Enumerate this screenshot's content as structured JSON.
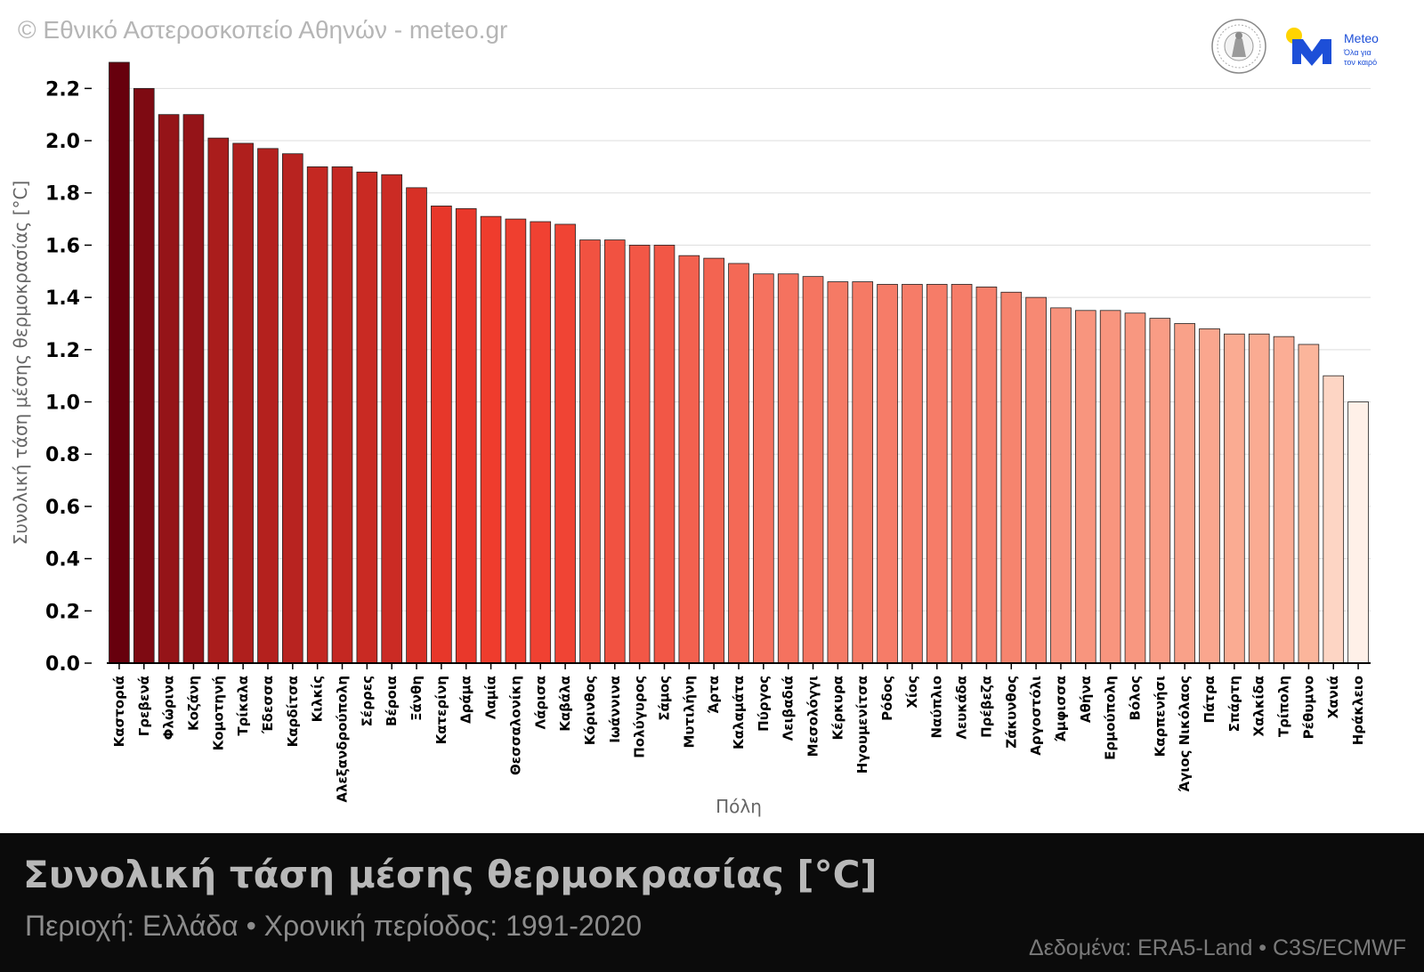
{
  "header": {
    "copyright": "© Εθνικό Αστεροσκοπείο Αθηνών - meteo.gr",
    "logo_text": "Meteo",
    "logo_slogan_1": "Όλα για",
    "logo_slogan_2": "τον καιρό"
  },
  "footer": {
    "title": "Συνολική τάση μέσης θερμοκρασίας [°C]",
    "subtitle": "Περιοχή: Ελλάδα • Χρονική περίοδος: 1991-2020",
    "source": "Δεδομένα: ERA5-Land • C3S/ECMWF"
  },
  "colors": {
    "dark": "#67000d",
    "mid": "#ef3b2c",
    "light": "#fcbba1",
    "lightest": "#fff0e8",
    "logo_blue": "#1d4fd8",
    "logo_yellow": "#ffd400"
  },
  "chart_data": {
    "type": "bar",
    "title": "",
    "xlabel": "Πόλη",
    "ylabel": "Συνολική τάση μέσης θερμοκρασίας [°C]",
    "ylim": [
      0,
      2.3
    ],
    "yticks": [
      "0.0",
      "0.2",
      "0.4",
      "0.6",
      "0.8",
      "1.0",
      "1.2",
      "1.4",
      "1.6",
      "1.8",
      "2.0",
      "2.2"
    ],
    "grid": true,
    "categories": [
      "Καστοριά",
      "Γρεβενά",
      "Φλώρινα",
      "Κοζάνη",
      "Κομοτηνή",
      "Τρίκαλα",
      "Έδεσσα",
      "Καρδίτσα",
      "Κιλκίς",
      "Αλεξανδρούπολη",
      "Σέρρες",
      "Βέροια",
      "Ξάνθη",
      "Κατερίνη",
      "Δράμα",
      "Λαμία",
      "Θεσσαλονίκη",
      "Λάρισα",
      "Καβάλα",
      "Κόρινθος",
      "Ιωάννινα",
      "Πολύγυρος",
      "Σάμος",
      "Μυτιλήνη",
      "Άρτα",
      "Καλαμάτα",
      "Πύργος",
      "Λειβαδιά",
      "Μεσολόγγι",
      "Κέρκυρα",
      "Ηγουμενίτσα",
      "Ρόδος",
      "Χίος",
      "Ναύπλιο",
      "Λευκάδα",
      "Πρέβεζα",
      "Ζάκυνθος",
      "Αργοστόλι",
      "Άμφισσα",
      "Αθήνα",
      "Ερμούπολη",
      "Βόλος",
      "Καρπενήσι",
      "Άγιος Νικόλαος",
      "Πάτρα",
      "Σπάρτη",
      "Χαλκίδα",
      "Τρίπολη",
      "Ρέθυμνο",
      "Χανιά",
      "Ηράκλειο"
    ],
    "values": [
      2.3,
      2.2,
      2.1,
      2.1,
      2.01,
      1.99,
      1.97,
      1.95,
      1.9,
      1.9,
      1.88,
      1.87,
      1.82,
      1.75,
      1.74,
      1.71,
      1.7,
      1.69,
      1.68,
      1.62,
      1.62,
      1.6,
      1.6,
      1.56,
      1.55,
      1.53,
      1.49,
      1.49,
      1.48,
      1.46,
      1.46,
      1.45,
      1.45,
      1.45,
      1.45,
      1.44,
      1.42,
      1.4,
      1.36,
      1.35,
      1.35,
      1.34,
      1.32,
      1.3,
      1.28,
      1.26,
      1.26,
      1.25,
      1.22,
      1.1,
      1.0
    ]
  }
}
